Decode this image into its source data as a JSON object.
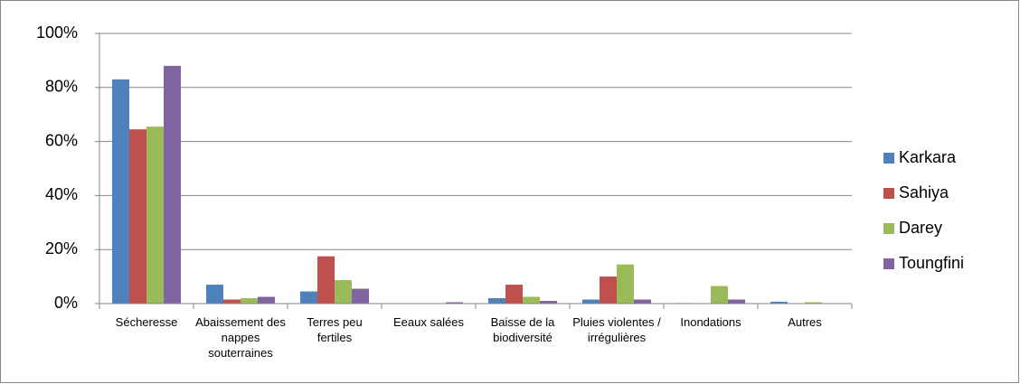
{
  "chart_data": {
    "type": "bar",
    "categories": [
      "Sécheresse",
      "Abaissement des nappes souterraines",
      "Terres peu fertiles",
      "Eeaux salées",
      "Baisse de la biodiversité",
      "Pluies violentes / irrégulières",
      "Inondations",
      "Autres"
    ],
    "series": [
      {
        "name": "Karkara",
        "color": "#4f81bd",
        "values": [
          83,
          7,
          4.5,
          0,
          2,
          1.5,
          0.2,
          0.7
        ]
      },
      {
        "name": "Sahiya",
        "color": "#c0504d",
        "values": [
          64.5,
          1.5,
          17.5,
          0,
          7,
          10,
          0,
          0.1
        ]
      },
      {
        "name": "Darey",
        "color": "#9bbb59",
        "values": [
          65.5,
          2,
          8.7,
          0,
          2.5,
          14.5,
          6.5,
          0.5
        ]
      },
      {
        "name": "Toungfini",
        "color": "#8064a2",
        "values": [
          88,
          2.5,
          5.5,
          0.5,
          1,
          1.5,
          1.5,
          0
        ]
      }
    ],
    "ylim": [
      0,
      100
    ],
    "yticks": [
      {
        "value": 0,
        "label": "0%"
      },
      {
        "value": 20,
        "label": "20%"
      },
      {
        "value": 40,
        "label": "40%"
      },
      {
        "value": 60,
        "label": "60%"
      },
      {
        "value": 80,
        "label": "80%"
      },
      {
        "value": 100,
        "label": "100%"
      }
    ],
    "grid": true,
    "legend": "right"
  }
}
